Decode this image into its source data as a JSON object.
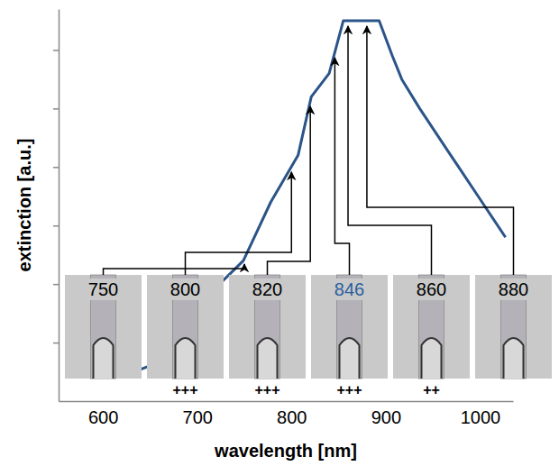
{
  "chart_data": {
    "type": "line",
    "x_label": "wavelength [nm]",
    "y_label": "extinction [a.u.]",
    "x": [
      625,
      649,
      711,
      749,
      778,
      807,
      821,
      840,
      855,
      869,
      883,
      893,
      907,
      917,
      936,
      969,
      998,
      1027
    ],
    "values": [
      0.45,
      0.6,
      1.8,
      2.4,
      3.4,
      4.2,
      5.2,
      5.6,
      6.5,
      6.5,
      6.5,
      6.5,
      5.9,
      5.5,
      5.0,
      4.2,
      3.5,
      2.8
    ],
    "color": "#2b5488",
    "xlim": [
      553,
      1035
    ],
    "xticks": [
      600,
      700,
      800,
      900,
      1000
    ],
    "ylim": [
      0,
      6.7
    ],
    "yticks": [
      1,
      2,
      3,
      4,
      5,
      6
    ],
    "tick_labels": "x",
    "insets": [
      {
        "wavelength": 750
      },
      {
        "wavelength": 800,
        "score": "+++"
      },
      {
        "wavelength": 820,
        "score": "+++"
      },
      {
        "wavelength": 846,
        "score": "+++",
        "color": "#2b5f9e"
      },
      {
        "wavelength": 860,
        "score": "++"
      },
      {
        "wavelength": 880
      }
    ]
  }
}
